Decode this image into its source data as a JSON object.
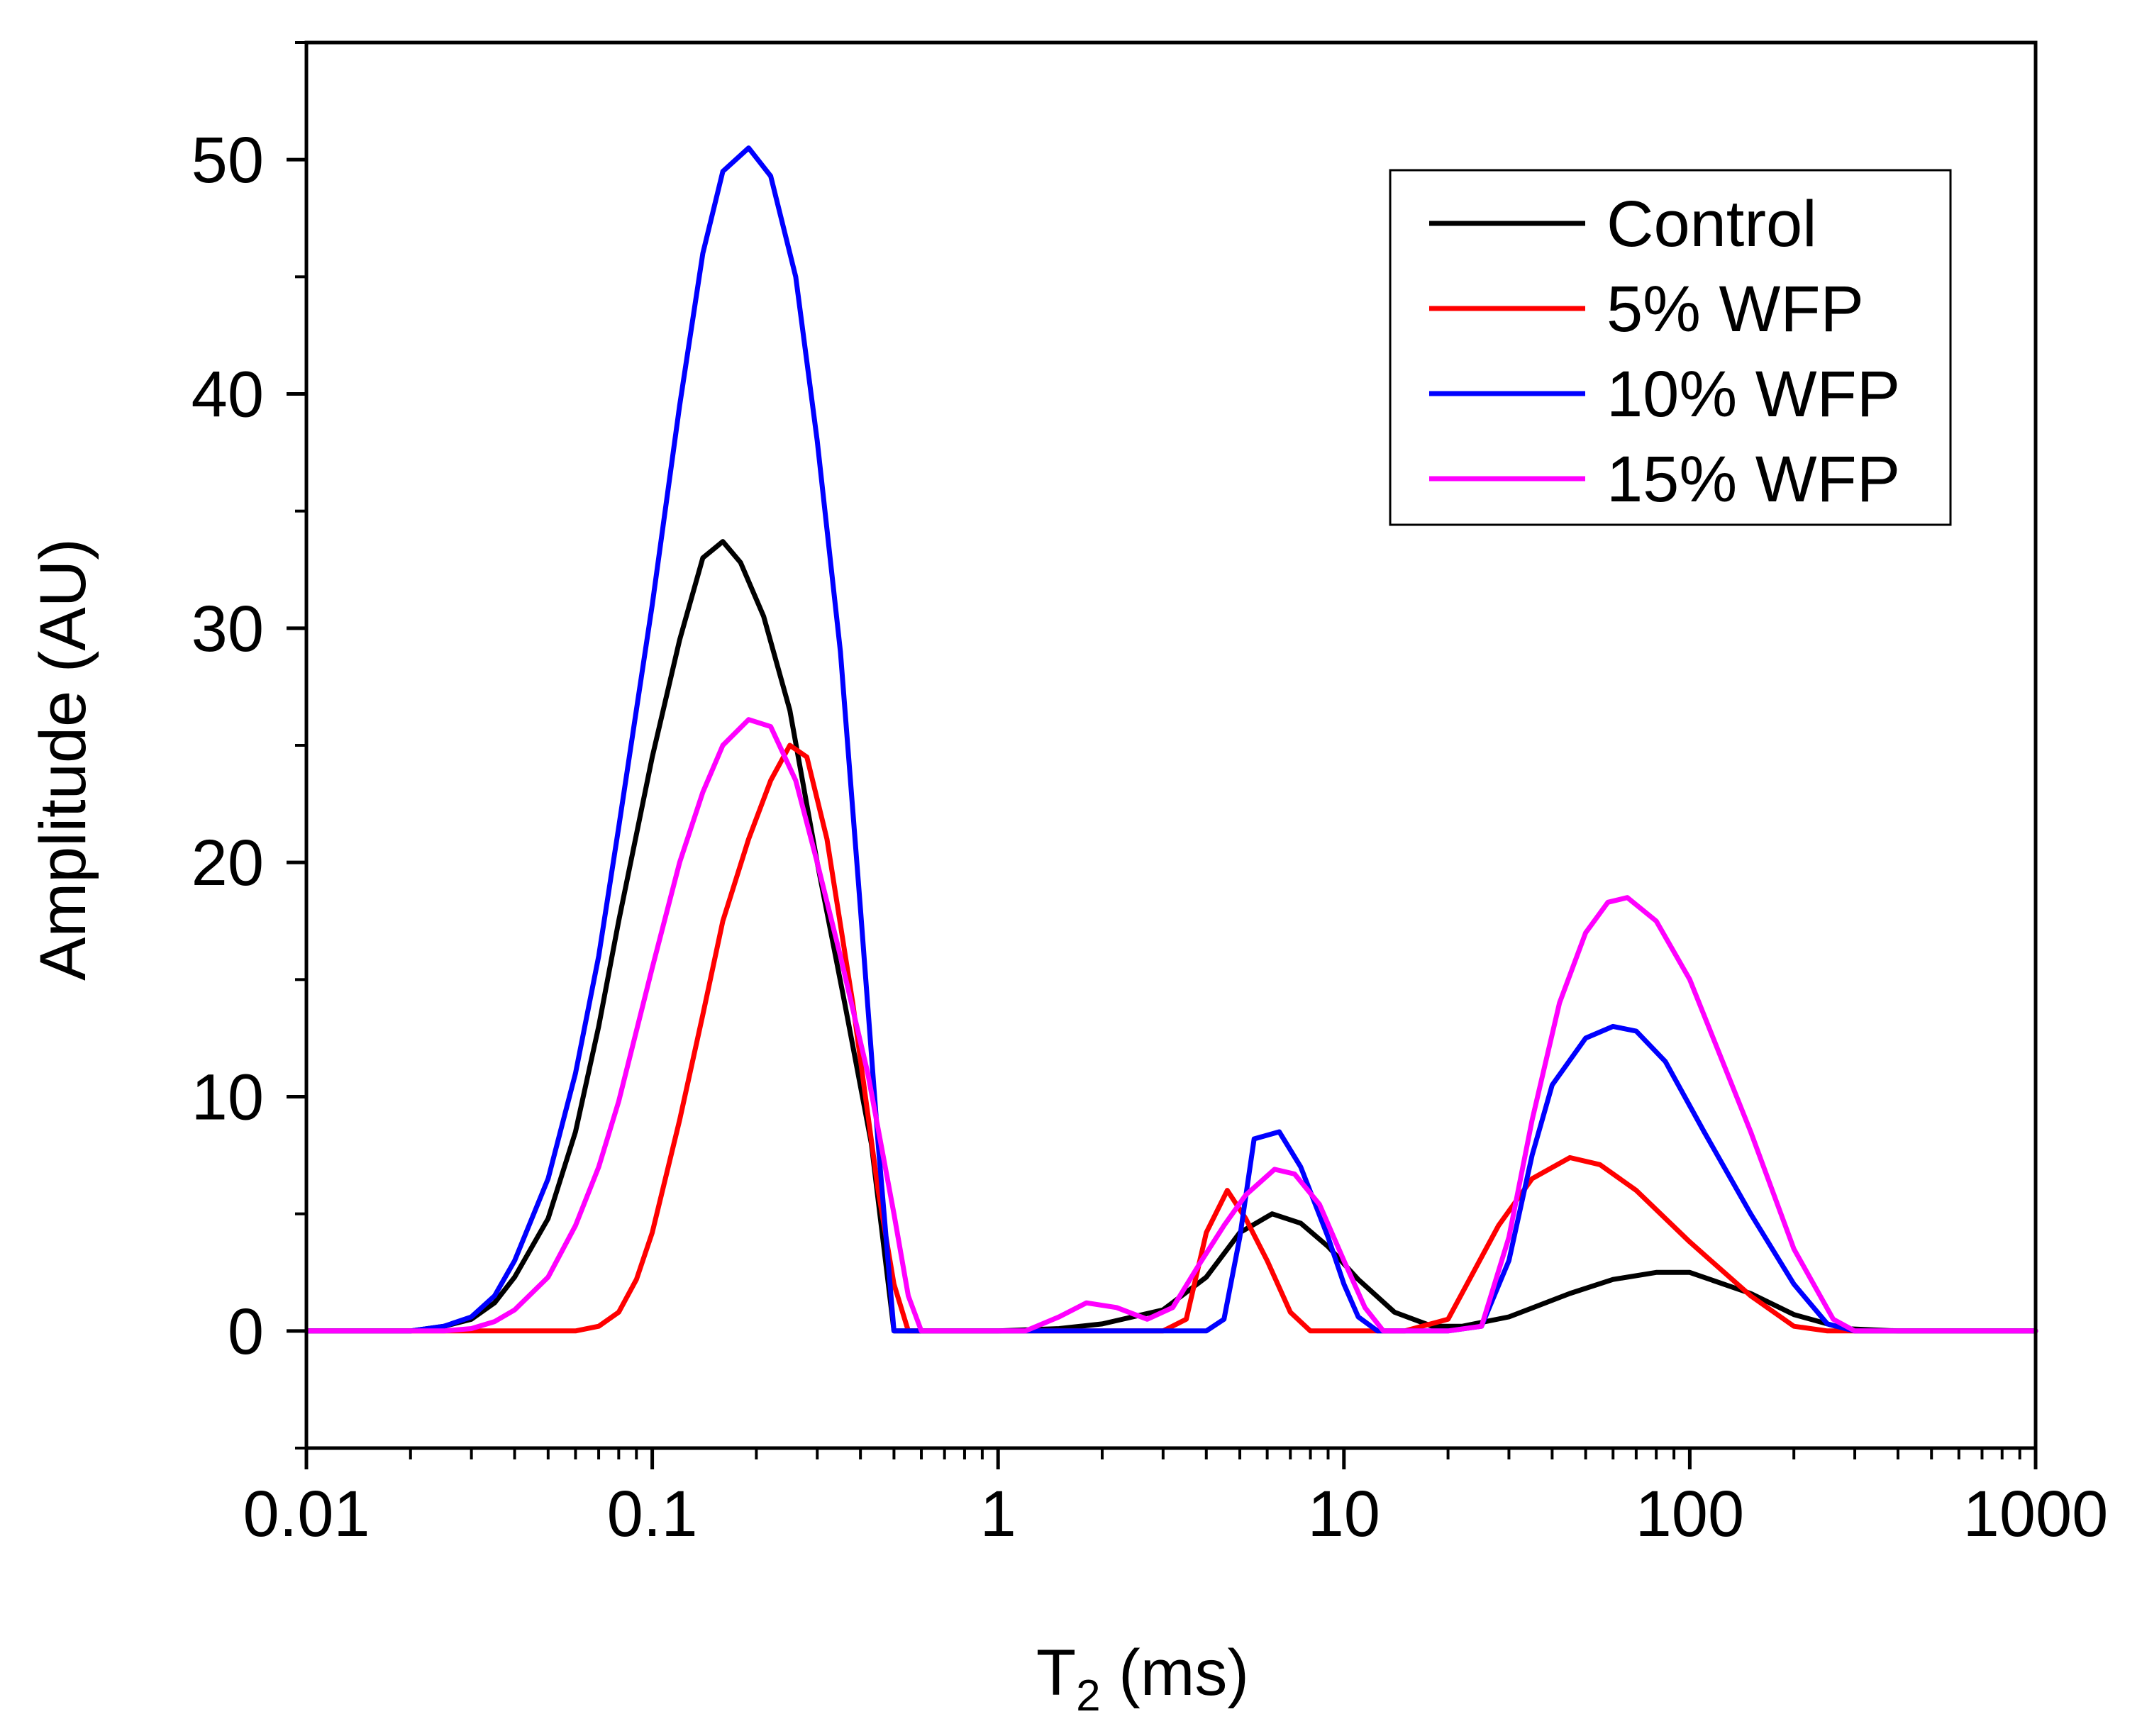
{
  "chart_data": {
    "type": "line",
    "title": "",
    "xlabel": {
      "main": "T",
      "sub": "2",
      "rest": " (ms)"
    },
    "ylabel": "Amplitude (AU)",
    "xscale": "log",
    "xlim": [
      0.01,
      1000
    ],
    "ylim": [
      -5,
      55
    ],
    "x_ticks": [
      0.01,
      0.1,
      1,
      10,
      100,
      1000
    ],
    "x_tick_labels": [
      "0.01",
      "0.1",
      "1",
      "10",
      "100",
      "1000"
    ],
    "y_ticks": [
      0,
      10,
      20,
      30,
      40,
      50
    ],
    "y_tick_labels": [
      "0",
      "10",
      "20",
      "30",
      "40",
      "50"
    ],
    "grid": false,
    "legend_position": "top-right",
    "series": [
      {
        "name": "Control",
        "color": "#000000",
        "points": [
          [
            0.01,
            0
          ],
          [
            0.02,
            0
          ],
          [
            0.025,
            0.2
          ],
          [
            0.03,
            0.5
          ],
          [
            0.035,
            1.2
          ],
          [
            0.04,
            2.3
          ],
          [
            0.05,
            4.8
          ],
          [
            0.06,
            8.5
          ],
          [
            0.07,
            13
          ],
          [
            0.08,
            17.5
          ],
          [
            0.1,
            24.5
          ],
          [
            0.12,
            29.5
          ],
          [
            0.14,
            33
          ],
          [
            0.16,
            33.7
          ],
          [
            0.18,
            32.8
          ],
          [
            0.21,
            30.5
          ],
          [
            0.25,
            26.5
          ],
          [
            0.3,
            20
          ],
          [
            0.36,
            14
          ],
          [
            0.43,
            8
          ],
          [
            0.5,
            0
          ],
          [
            0.7,
            0
          ],
          [
            1,
            0
          ],
          [
            1.5,
            0.1
          ],
          [
            2,
            0.3
          ],
          [
            3,
            0.9
          ],
          [
            4,
            2.3
          ],
          [
            5,
            4.2
          ],
          [
            6.2,
            5
          ],
          [
            7.5,
            4.6
          ],
          [
            9,
            3.6
          ],
          [
            11,
            2.2
          ],
          [
            14,
            0.8
          ],
          [
            18,
            0.2
          ],
          [
            22,
            0.2
          ],
          [
            30,
            0.6
          ],
          [
            45,
            1.6
          ],
          [
            60,
            2.2
          ],
          [
            80,
            2.5
          ],
          [
            100,
            2.5
          ],
          [
            150,
            1.6
          ],
          [
            200,
            0.7
          ],
          [
            280,
            0.1
          ],
          [
            400,
            0
          ],
          [
            1000,
            0
          ]
        ]
      },
      {
        "name": "5% WFP",
        "color": "#ff0000",
        "points": [
          [
            0.01,
            0
          ],
          [
            0.06,
            0
          ],
          [
            0.07,
            0.2
          ],
          [
            0.08,
            0.8
          ],
          [
            0.09,
            2.2
          ],
          [
            0.1,
            4.2
          ],
          [
            0.12,
            9
          ],
          [
            0.14,
            13.5
          ],
          [
            0.16,
            17.5
          ],
          [
            0.19,
            21
          ],
          [
            0.22,
            23.5
          ],
          [
            0.25,
            25
          ],
          [
            0.28,
            24.5
          ],
          [
            0.32,
            21
          ],
          [
            0.38,
            14
          ],
          [
            0.45,
            6
          ],
          [
            0.5,
            2
          ],
          [
            0.55,
            0
          ],
          [
            1,
            0
          ],
          [
            3,
            0
          ],
          [
            3.5,
            0.5
          ],
          [
            4,
            4.2
          ],
          [
            4.6,
            6
          ],
          [
            5.2,
            4.8
          ],
          [
            6,
            3
          ],
          [
            7,
            0.8
          ],
          [
            8,
            0
          ],
          [
            15,
            0
          ],
          [
            20,
            0.5
          ],
          [
            28,
            4.5
          ],
          [
            35,
            6.5
          ],
          [
            45,
            7.4
          ],
          [
            55,
            7.1
          ],
          [
            70,
            6
          ],
          [
            100,
            3.8
          ],
          [
            150,
            1.5
          ],
          [
            200,
            0.2
          ],
          [
            250,
            0
          ],
          [
            1000,
            0
          ]
        ]
      },
      {
        "name": "10% WFP",
        "color": "#0000ff",
        "points": [
          [
            0.01,
            0
          ],
          [
            0.02,
            0
          ],
          [
            0.025,
            0.2
          ],
          [
            0.03,
            0.6
          ],
          [
            0.035,
            1.5
          ],
          [
            0.04,
            3
          ],
          [
            0.05,
            6.5
          ],
          [
            0.06,
            11
          ],
          [
            0.07,
            16
          ],
          [
            0.08,
            21.5
          ],
          [
            0.1,
            31
          ],
          [
            0.12,
            39.5
          ],
          [
            0.14,
            46
          ],
          [
            0.16,
            49.5
          ],
          [
            0.19,
            50.5
          ],
          [
            0.22,
            49.3
          ],
          [
            0.26,
            45
          ],
          [
            0.3,
            38
          ],
          [
            0.35,
            29
          ],
          [
            0.4,
            18
          ],
          [
            0.45,
            8
          ],
          [
            0.5,
            0
          ],
          [
            1,
            0
          ],
          [
            4,
            0
          ],
          [
            4.5,
            0.5
          ],
          [
            5,
            4
          ],
          [
            5.5,
            8.2
          ],
          [
            6.5,
            8.5
          ],
          [
            7.5,
            7
          ],
          [
            9,
            4
          ],
          [
            10,
            2
          ],
          [
            11,
            0.6
          ],
          [
            12.5,
            0
          ],
          [
            20,
            0
          ],
          [
            25,
            0.2
          ],
          [
            30,
            3
          ],
          [
            35,
            7.5
          ],
          [
            40,
            10.5
          ],
          [
            50,
            12.5
          ],
          [
            60,
            13
          ],
          [
            70,
            12.8
          ],
          [
            85,
            11.5
          ],
          [
            110,
            8.5
          ],
          [
            150,
            5
          ],
          [
            200,
            2
          ],
          [
            250,
            0.3
          ],
          [
            300,
            0
          ],
          [
            1000,
            0
          ]
        ]
      },
      {
        "name": "15% WFP",
        "color": "#ff00ff",
        "points": [
          [
            0.01,
            0
          ],
          [
            0.025,
            0
          ],
          [
            0.03,
            0.1
          ],
          [
            0.035,
            0.4
          ],
          [
            0.04,
            0.9
          ],
          [
            0.05,
            2.3
          ],
          [
            0.06,
            4.5
          ],
          [
            0.07,
            7
          ],
          [
            0.08,
            9.8
          ],
          [
            0.1,
            15.5
          ],
          [
            0.12,
            20
          ],
          [
            0.14,
            23
          ],
          [
            0.16,
            25
          ],
          [
            0.19,
            26.1
          ],
          [
            0.22,
            25.8
          ],
          [
            0.26,
            23.5
          ],
          [
            0.3,
            20
          ],
          [
            0.35,
            16
          ],
          [
            0.42,
            11
          ],
          [
            0.5,
            5
          ],
          [
            0.55,
            1.5
          ],
          [
            0.6,
            0
          ],
          [
            1,
            0
          ],
          [
            1.2,
            0
          ],
          [
            1.5,
            0.6
          ],
          [
            1.8,
            1.2
          ],
          [
            2.2,
            1
          ],
          [
            2.7,
            0.5
          ],
          [
            3.2,
            1
          ],
          [
            3.8,
            2.8
          ],
          [
            4.5,
            4.5
          ],
          [
            5.2,
            5.8
          ],
          [
            6.3,
            6.9
          ],
          [
            7.2,
            6.7
          ],
          [
            8.5,
            5.4
          ],
          [
            10,
            3
          ],
          [
            11.5,
            1
          ],
          [
            13,
            0
          ],
          [
            20,
            0
          ],
          [
            25,
            0.2
          ],
          [
            30,
            4
          ],
          [
            35,
            9
          ],
          [
            42,
            14
          ],
          [
            50,
            17
          ],
          [
            58,
            18.3
          ],
          [
            66,
            18.5
          ],
          [
            80,
            17.5
          ],
          [
            100,
            15
          ],
          [
            150,
            8.5
          ],
          [
            200,
            3.5
          ],
          [
            260,
            0.5
          ],
          [
            300,
            0
          ],
          [
            1000,
            0
          ]
        ]
      }
    ]
  }
}
